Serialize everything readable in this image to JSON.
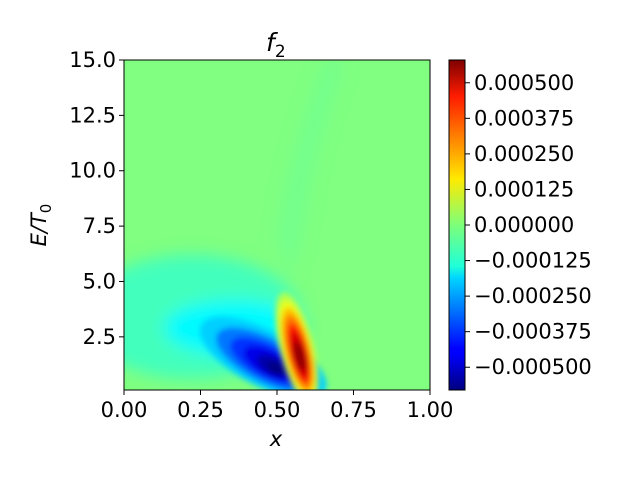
{
  "chart_data": {
    "type": "heatmap",
    "title": "f",
    "title_subscript": "2",
    "xlabel": "x",
    "ylabel": "E/T",
    "ylabel_subscript": "0",
    "xlim": [
      0.0,
      1.0
    ],
    "ylim": [
      0.1,
      15.0
    ],
    "xticks": [
      "0.00",
      "0.25",
      "0.50",
      "0.75",
      "1.00"
    ],
    "xtick_values": [
      0.0,
      0.25,
      0.5,
      0.75,
      1.0
    ],
    "yticks": [
      "2.5",
      "5.0",
      "7.5",
      "10.0",
      "12.5",
      "15.0"
    ],
    "ytick_values": [
      2.5,
      5.0,
      7.5,
      10.0,
      12.5,
      15.0
    ],
    "colorbar": {
      "colormap": "jet",
      "range": [
        -0.00058,
        0.00058
      ],
      "ticks": [
        "0.000500",
        "0.000375",
        "0.000250",
        "0.000125",
        "0.000000",
        "−0.000125",
        "−0.000250",
        "−0.000375",
        "−0.000500"
      ],
      "tick_values": [
        0.0005,
        0.000375,
        0.00025,
        0.000125,
        0.0,
        -0.000125,
        -0.00025,
        -0.000375,
        -0.0005
      ]
    },
    "features": [
      {
        "kind": "negative_lobe",
        "x": 0.47,
        "y": 1.3,
        "peak": -0.00055
      },
      {
        "kind": "positive_lobe",
        "x": 0.565,
        "y": 1.8,
        "peak": 0.00055
      },
      {
        "kind": "negative_halo",
        "x": 0.37,
        "y": 2.9,
        "peak": -0.0002
      }
    ],
    "grid": false
  }
}
